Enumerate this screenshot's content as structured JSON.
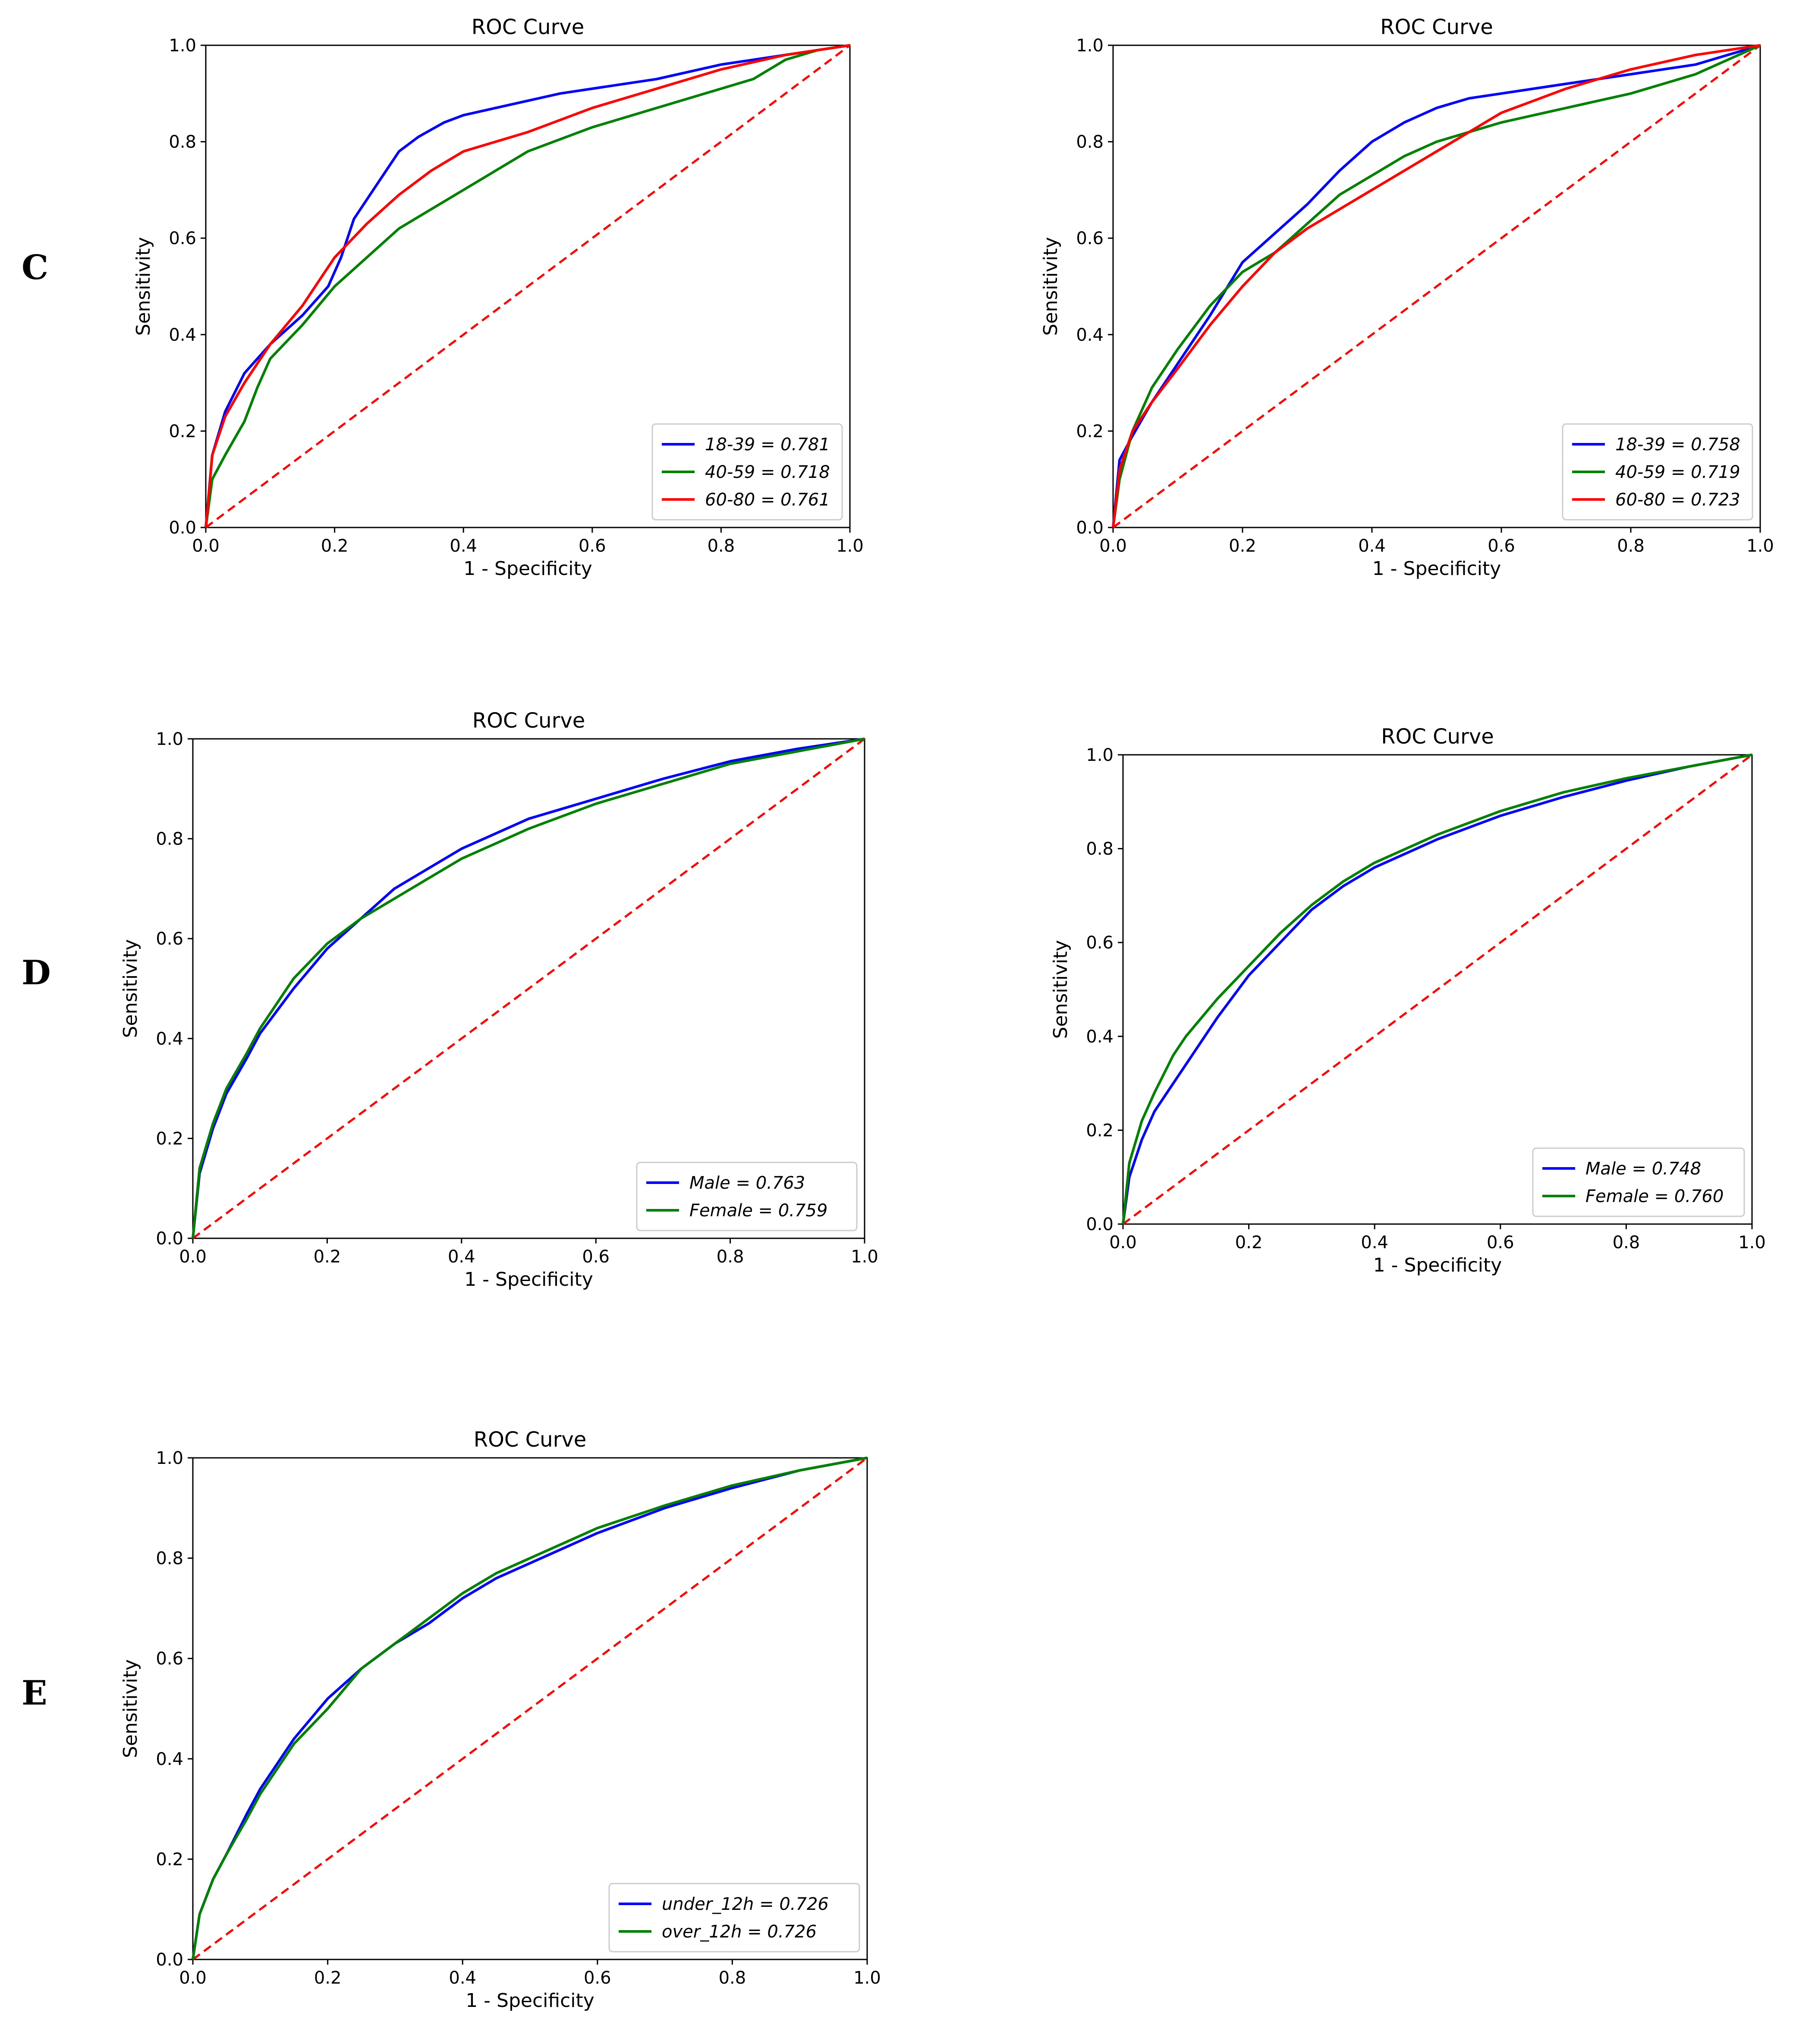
{
  "panel_labels": {
    "c": "C",
    "d": "D",
    "e": "E"
  },
  "colors": {
    "blue": "#0000ff",
    "green": "#008000",
    "red": "#ff0000",
    "diagonal": "#ff0000",
    "axis": "#000000"
  },
  "chart_data": [
    {
      "type": "line",
      "panel": "C-left",
      "title": "ROC Curve",
      "xlabel": "1 - Specificity",
      "ylabel": "Sensitivity",
      "xlim": [
        0,
        1
      ],
      "ylim": [
        0,
        1
      ],
      "xticks": [
        "0.0",
        "0.2",
        "0.4",
        "0.6",
        "0.8",
        "1.0"
      ],
      "yticks": [
        "0.0",
        "0.2",
        "0.4",
        "0.6",
        "0.8",
        "1.0"
      ],
      "legend": "lower-right",
      "diagonal": true,
      "series": [
        {
          "name": "18-39 = 0.781",
          "color": "#0000ff",
          "x": [
            0,
            0.01,
            0.03,
            0.06,
            0.1,
            0.15,
            0.19,
            0.21,
            0.23,
            0.27,
            0.3,
            0.33,
            0.37,
            0.4,
            0.45,
            0.5,
            0.55,
            0.6,
            0.7,
            0.8,
            0.9,
            1.0
          ],
          "y": [
            0,
            0.15,
            0.24,
            0.32,
            0.38,
            0.44,
            0.5,
            0.56,
            0.64,
            0.72,
            0.78,
            0.81,
            0.84,
            0.855,
            0.87,
            0.885,
            0.9,
            0.91,
            0.93,
            0.96,
            0.98,
            1.0
          ]
        },
        {
          "name": "40-59 = 0.718",
          "color": "#008000",
          "x": [
            0,
            0.01,
            0.03,
            0.06,
            0.08,
            0.1,
            0.15,
            0.2,
            0.25,
            0.3,
            0.35,
            0.4,
            0.45,
            0.5,
            0.6,
            0.7,
            0.8,
            0.85,
            0.9,
            0.95,
            1.0
          ],
          "y": [
            0,
            0.1,
            0.15,
            0.22,
            0.29,
            0.35,
            0.42,
            0.5,
            0.56,
            0.62,
            0.66,
            0.7,
            0.74,
            0.78,
            0.83,
            0.87,
            0.91,
            0.93,
            0.97,
            0.99,
            1.0
          ]
        },
        {
          "name": "60-80 = 0.761",
          "color": "#ff0000",
          "x": [
            0,
            0.01,
            0.03,
            0.06,
            0.1,
            0.15,
            0.18,
            0.2,
            0.25,
            0.3,
            0.35,
            0.4,
            0.45,
            0.5,
            0.6,
            0.7,
            0.8,
            0.9,
            1.0
          ],
          "y": [
            0,
            0.15,
            0.23,
            0.3,
            0.38,
            0.46,
            0.52,
            0.56,
            0.63,
            0.69,
            0.74,
            0.78,
            0.8,
            0.82,
            0.87,
            0.91,
            0.95,
            0.98,
            1.0
          ]
        }
      ]
    },
    {
      "type": "line",
      "panel": "C-right",
      "title": "ROC Curve",
      "xlabel": "1 - Specificity",
      "ylabel": "Sensitivity",
      "xlim": [
        0,
        1
      ],
      "ylim": [
        0,
        1
      ],
      "xticks": [
        "0.0",
        "0.2",
        "0.4",
        "0.6",
        "0.8",
        "1.0"
      ],
      "yticks": [
        "0.0",
        "0.2",
        "0.4",
        "0.6",
        "0.8",
        "1.0"
      ],
      "legend": "lower-right",
      "diagonal": true,
      "series": [
        {
          "name": "18-39 = 0.758",
          "color": "#0000ff",
          "x": [
            0,
            0.01,
            0.03,
            0.06,
            0.1,
            0.15,
            0.2,
            0.25,
            0.3,
            0.35,
            0.4,
            0.45,
            0.5,
            0.55,
            0.6,
            0.7,
            0.8,
            0.9,
            1.0
          ],
          "y": [
            0,
            0.14,
            0.19,
            0.26,
            0.34,
            0.44,
            0.55,
            0.61,
            0.67,
            0.74,
            0.8,
            0.84,
            0.87,
            0.89,
            0.9,
            0.92,
            0.94,
            0.96,
            1.0
          ]
        },
        {
          "name": "40-59 = 0.719",
          "color": "#008000",
          "x": [
            0,
            0.01,
            0.03,
            0.06,
            0.1,
            0.15,
            0.2,
            0.25,
            0.3,
            0.35,
            0.4,
            0.45,
            0.5,
            0.6,
            0.7,
            0.8,
            0.9,
            1.0
          ],
          "y": [
            0,
            0.1,
            0.2,
            0.29,
            0.37,
            0.46,
            0.53,
            0.57,
            0.63,
            0.69,
            0.73,
            0.77,
            0.8,
            0.84,
            0.87,
            0.9,
            0.94,
            1.0
          ]
        },
        {
          "name": "60-80 = 0.723",
          "color": "#ff0000",
          "x": [
            0,
            0.01,
            0.03,
            0.06,
            0.1,
            0.15,
            0.2,
            0.25,
            0.3,
            0.35,
            0.4,
            0.45,
            0.5,
            0.6,
            0.7,
            0.8,
            0.9,
            1.0
          ],
          "y": [
            0,
            0.12,
            0.2,
            0.26,
            0.33,
            0.42,
            0.5,
            0.57,
            0.62,
            0.66,
            0.7,
            0.74,
            0.78,
            0.86,
            0.91,
            0.95,
            0.98,
            1.0
          ]
        }
      ]
    },
    {
      "type": "line",
      "panel": "D-left",
      "title": "ROC Curve",
      "xlabel": "1 - Specificity",
      "ylabel": "Sensitivity",
      "xlim": [
        0,
        1
      ],
      "ylim": [
        0,
        1
      ],
      "xticks": [
        "0.0",
        "0.2",
        "0.4",
        "0.6",
        "0.8",
        "1.0"
      ],
      "yticks": [
        "0.0",
        "0.2",
        "0.4",
        "0.6",
        "0.8",
        "1.0"
      ],
      "legend": "lower-right",
      "diagonal": true,
      "series": [
        {
          "name": "Male = 0.763",
          "color": "#0000ff",
          "x": [
            0,
            0.01,
            0.03,
            0.05,
            0.08,
            0.1,
            0.15,
            0.2,
            0.25,
            0.3,
            0.35,
            0.4,
            0.45,
            0.5,
            0.6,
            0.7,
            0.8,
            0.9,
            1.0
          ],
          "y": [
            0,
            0.13,
            0.22,
            0.29,
            0.36,
            0.41,
            0.5,
            0.58,
            0.64,
            0.7,
            0.74,
            0.78,
            0.81,
            0.84,
            0.88,
            0.92,
            0.955,
            0.98,
            1.0
          ]
        },
        {
          "name": "Female = 0.759",
          "color": "#008000",
          "x": [
            0,
            0.01,
            0.03,
            0.05,
            0.08,
            0.1,
            0.15,
            0.2,
            0.25,
            0.3,
            0.35,
            0.4,
            0.45,
            0.5,
            0.6,
            0.7,
            0.8,
            0.9,
            1.0
          ],
          "y": [
            0,
            0.14,
            0.23,
            0.3,
            0.37,
            0.42,
            0.52,
            0.59,
            0.64,
            0.68,
            0.72,
            0.76,
            0.79,
            0.82,
            0.87,
            0.91,
            0.95,
            0.975,
            1.0
          ]
        }
      ]
    },
    {
      "type": "line",
      "panel": "D-right",
      "title": "ROC Curve",
      "xlabel": "1 - Specificity",
      "ylabel": "Sensitivity",
      "xlim": [
        0,
        1
      ],
      "ylim": [
        0,
        1
      ],
      "xticks": [
        "0.0",
        "0.2",
        "0.4",
        "0.6",
        "0.8",
        "1.0"
      ],
      "yticks": [
        "0.0",
        "0.2",
        "0.4",
        "0.6",
        "0.8",
        "1.0"
      ],
      "legend": "lower-right",
      "diagonal": true,
      "series": [
        {
          "name": "Male = 0.748",
          "color": "#0000ff",
          "x": [
            0,
            0.01,
            0.03,
            0.05,
            0.08,
            0.1,
            0.15,
            0.2,
            0.25,
            0.3,
            0.35,
            0.4,
            0.45,
            0.5,
            0.6,
            0.7,
            0.8,
            0.9,
            1.0
          ],
          "y": [
            0,
            0.1,
            0.18,
            0.24,
            0.3,
            0.34,
            0.44,
            0.53,
            0.6,
            0.67,
            0.72,
            0.76,
            0.79,
            0.82,
            0.87,
            0.91,
            0.945,
            0.975,
            1.0
          ]
        },
        {
          "name": "Female = 0.760",
          "color": "#008000",
          "x": [
            0,
            0.01,
            0.03,
            0.05,
            0.08,
            0.1,
            0.15,
            0.2,
            0.25,
            0.3,
            0.35,
            0.4,
            0.45,
            0.5,
            0.6,
            0.7,
            0.8,
            0.9,
            1.0
          ],
          "y": [
            0,
            0.13,
            0.22,
            0.28,
            0.36,
            0.4,
            0.48,
            0.55,
            0.62,
            0.68,
            0.73,
            0.77,
            0.8,
            0.83,
            0.88,
            0.92,
            0.95,
            0.975,
            1.0
          ]
        }
      ]
    },
    {
      "type": "line",
      "panel": "E",
      "title": "ROC Curve",
      "xlabel": "1 - Specificity",
      "ylabel": "Sensitivity",
      "xlim": [
        0,
        1
      ],
      "ylim": [
        0,
        1
      ],
      "xticks": [
        "0.0",
        "0.2",
        "0.4",
        "0.6",
        "0.8",
        "1.0"
      ],
      "yticks": [
        "0.0",
        "0.2",
        "0.4",
        "0.6",
        "0.8",
        "1.0"
      ],
      "legend": "lower-right",
      "diagonal": true,
      "series": [
        {
          "name": "under_12h = 0.726",
          "color": "#0000ff",
          "x": [
            0,
            0.01,
            0.03,
            0.05,
            0.08,
            0.1,
            0.15,
            0.2,
            0.25,
            0.3,
            0.35,
            0.4,
            0.45,
            0.5,
            0.6,
            0.7,
            0.8,
            0.9,
            1.0
          ],
          "y": [
            0,
            0.09,
            0.16,
            0.21,
            0.29,
            0.34,
            0.44,
            0.52,
            0.58,
            0.63,
            0.67,
            0.72,
            0.76,
            0.79,
            0.85,
            0.9,
            0.94,
            0.975,
            1.0
          ]
        },
        {
          "name": "over_12h = 0.726",
          "color": "#008000",
          "x": [
            0,
            0.01,
            0.03,
            0.05,
            0.08,
            0.1,
            0.15,
            0.2,
            0.25,
            0.3,
            0.35,
            0.4,
            0.45,
            0.5,
            0.6,
            0.7,
            0.8,
            0.9,
            1.0
          ],
          "y": [
            0,
            0.09,
            0.16,
            0.21,
            0.28,
            0.33,
            0.43,
            0.5,
            0.58,
            0.63,
            0.68,
            0.73,
            0.77,
            0.8,
            0.86,
            0.905,
            0.945,
            0.975,
            1.0
          ]
        }
      ]
    }
  ]
}
